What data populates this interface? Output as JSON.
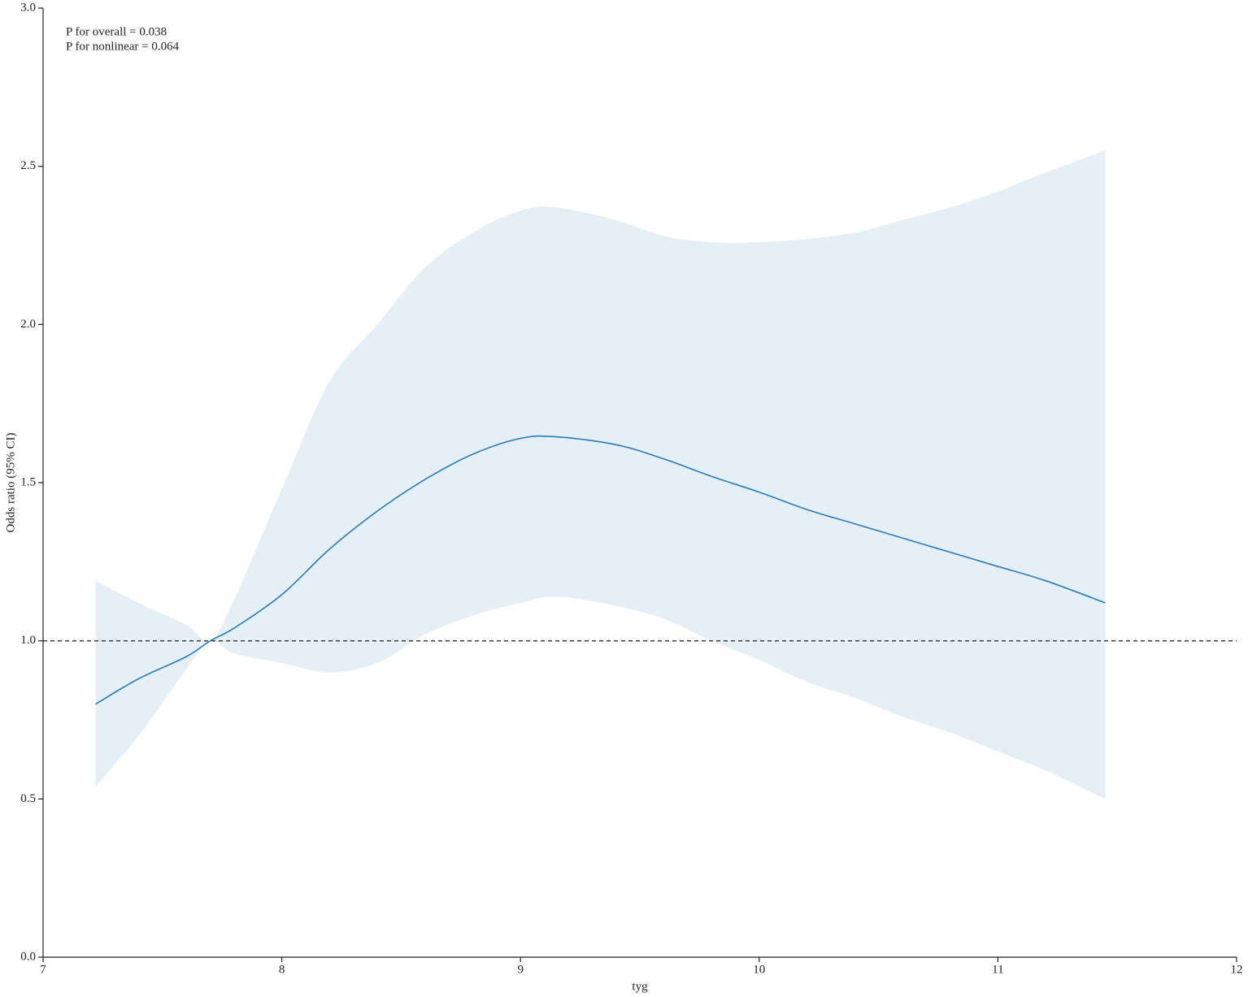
{
  "chart_data": {
    "type": "spline_band",
    "x": [
      7.22,
      7.4,
      7.6,
      7.7,
      7.8,
      8.0,
      8.2,
      8.4,
      8.6,
      8.8,
      9.0,
      9.15,
      9.4,
      9.6,
      9.8,
      10.0,
      10.2,
      10.4,
      10.6,
      10.8,
      11.0,
      11.2,
      11.45
    ],
    "values": [
      0.8,
      0.88,
      0.95,
      1.0,
      1.04,
      1.146,
      1.29,
      1.41,
      1.51,
      1.59,
      1.64,
      1.645,
      1.62,
      1.575,
      1.52,
      1.47,
      1.415,
      1.37,
      1.325,
      1.28,
      1.235,
      1.19,
      1.12
    ],
    "lower": [
      0.54,
      0.7,
      0.91,
      1.0,
      0.96,
      0.93,
      0.9,
      0.93,
      1.02,
      1.08,
      1.12,
      1.14,
      1.11,
      1.07,
      1.0,
      0.94,
      0.87,
      0.82,
      0.76,
      0.71,
      0.65,
      0.59,
      0.5
    ],
    "upper": [
      1.19,
      1.12,
      1.05,
      1.0,
      1.13,
      1.48,
      1.82,
      2.0,
      2.18,
      2.29,
      2.36,
      2.37,
      2.33,
      2.28,
      2.26,
      2.26,
      2.27,
      2.29,
      2.33,
      2.37,
      2.42,
      2.48,
      2.55
    ],
    "color": "#2b7bb9",
    "band_color": "#e4eff6",
    "reference_line": 1,
    "xlabel": "tyg",
    "ylabel": "Odds ratio (95% CI)",
    "annotations": [
      "P for overall = 0.038",
      "P for nonlinear = 0.064"
    ],
    "xlim": [
      7,
      12
    ],
    "xticks": [
      7,
      8,
      9,
      10,
      11,
      12
    ],
    "ylim": [
      0,
      3
    ],
    "yticks": [
      {
        "value": 0,
        "label": "0.0"
      },
      0.5,
      {
        "value": 1,
        "label": "1.0"
      },
      1.5,
      {
        "value": 2,
        "label": "2.0"
      },
      2.5,
      {
        "value": 3,
        "label": "3.0"
      }
    ]
  }
}
